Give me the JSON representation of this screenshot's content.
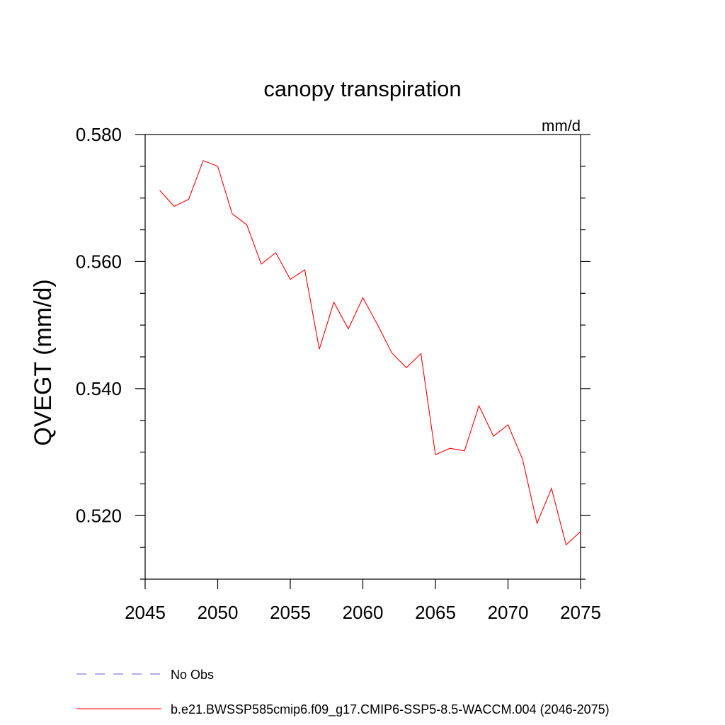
{
  "chart_data": {
    "type": "line",
    "title": "canopy transpiration",
    "units": "mm/d",
    "ylabel": "QVEGT  (mm/d)",
    "xlabel": "",
    "xlim": [
      2045,
      2075
    ],
    "ylim": [
      0.51,
      0.58
    ],
    "x_ticks": [
      2045,
      2050,
      2055,
      2060,
      2065,
      2070,
      2075
    ],
    "y_ticks": [
      0.52,
      0.54,
      0.56,
      0.58
    ],
    "x_tick_labels": [
      "2045",
      "2050",
      "2055",
      "2060",
      "2065",
      "2070",
      "2075"
    ],
    "y_tick_labels": [
      "0.520",
      "0.540",
      "0.560",
      "0.580"
    ],
    "grid": false,
    "legend_position": "bottom",
    "series": [
      {
        "name": "b.e21.BWSSP585cmip6.f09_g17.CMIP6-SSP5-8.5-WACCM.004 (2046-2075)",
        "color": "#ff0000",
        "style": "solid",
        "x": [
          2046,
          2047,
          2048,
          2049,
          2050,
          2051,
          2052,
          2053,
          2054,
          2055,
          2056,
          2057,
          2058,
          2059,
          2060,
          2061,
          2062,
          2063,
          2064,
          2065,
          2066,
          2067,
          2068,
          2069,
          2070,
          2071,
          2072,
          2073,
          2074,
          2075
        ],
        "values": [
          0.5712,
          0.5687,
          0.5698,
          0.5759,
          0.575,
          0.5675,
          0.5658,
          0.5596,
          0.5614,
          0.5572,
          0.5587,
          0.5462,
          0.5536,
          0.5494,
          0.5543,
          0.5501,
          0.5456,
          0.5433,
          0.5455,
          0.5296,
          0.5306,
          0.5302,
          0.5373,
          0.5325,
          0.5343,
          0.5289,
          0.5188,
          0.5243,
          0.5154,
          0.5175
        ]
      }
    ],
    "legend": [
      {
        "label": "No Obs",
        "color": "#6a5acd",
        "style": "dashed"
      },
      {
        "label": "b.e21.BWSSP585cmip6.f09_g17.CMIP6-SSP5-8.5-WACCM.004 (2046-2075)",
        "color": "#ff0000",
        "style": "solid"
      }
    ]
  }
}
